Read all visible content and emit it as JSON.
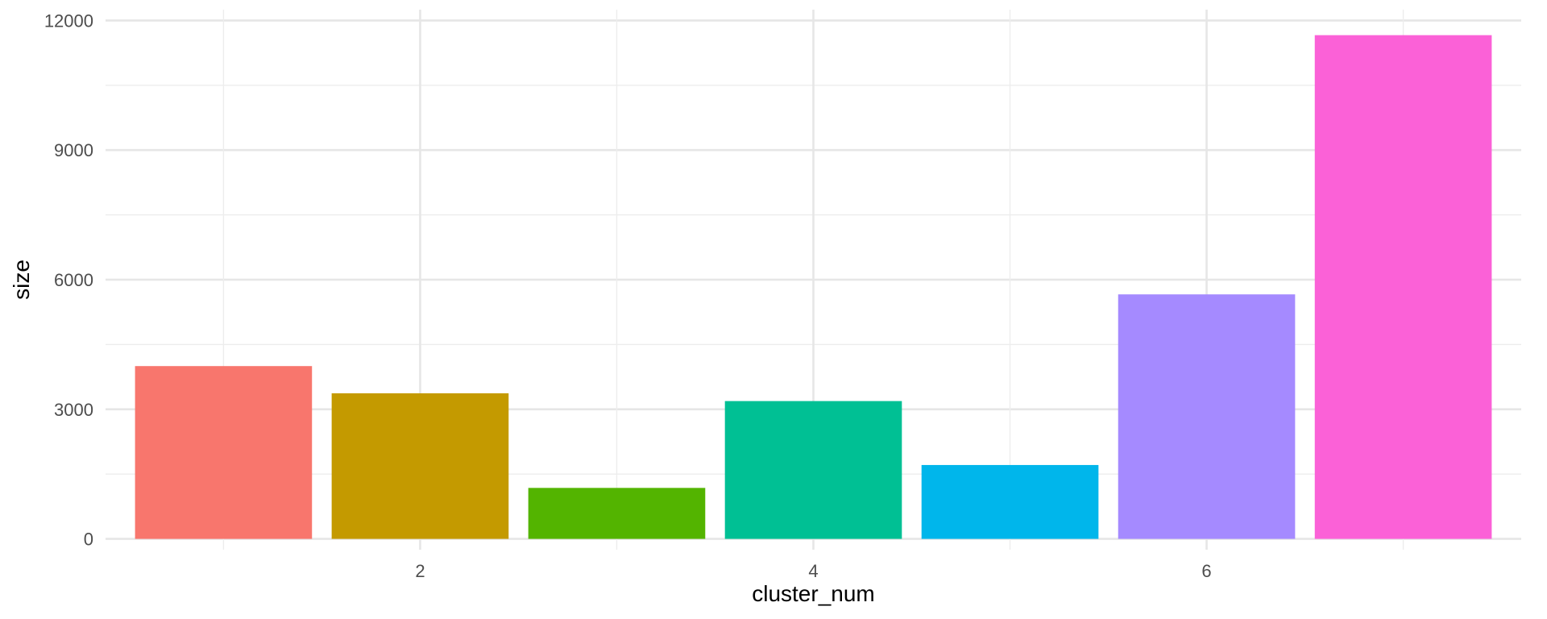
{
  "chart_data": {
    "type": "bar",
    "title": "",
    "xlabel": "cluster_num",
    "ylabel": "size",
    "x": [
      1,
      2,
      3,
      4,
      5,
      6,
      7
    ],
    "values": [
      4000,
      3370,
      1180,
      3190,
      1710,
      5660,
      11660
    ],
    "colors": [
      "#F8766D",
      "#C49A00",
      "#53B400",
      "#00C094",
      "#00B6EB",
      "#A58AFF",
      "#FB61D7"
    ],
    "xlim": [
      0.4,
      7.6
    ],
    "ylim": [
      -250,
      12250
    ],
    "x_ticks": [
      2,
      4,
      6
    ],
    "y_ticks": [
      0,
      3000,
      6000,
      9000,
      12000
    ],
    "x_tick_labels": [
      "2",
      "4",
      "6"
    ],
    "y_tick_labels": [
      "0",
      "3000",
      "6000",
      "9000",
      "12000"
    ],
    "grid": true,
    "legend": "none"
  }
}
